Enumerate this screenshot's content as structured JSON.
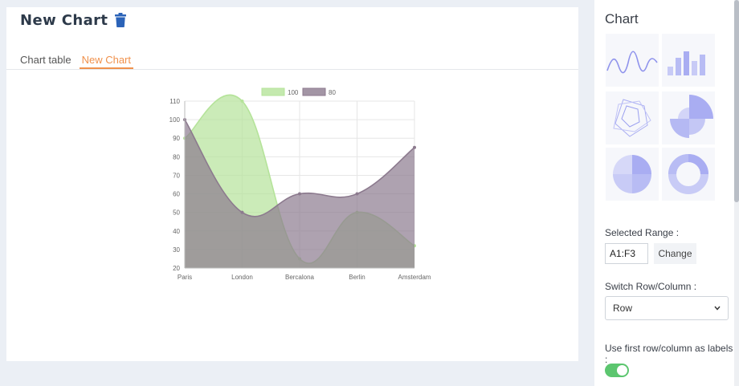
{
  "header": {
    "title": "New Chart"
  },
  "tabs": [
    {
      "label": "Chart table",
      "active": false
    },
    {
      "label": "New Chart",
      "active": true
    }
  ],
  "chart_data": {
    "type": "area",
    "categories": [
      "Paris",
      "London",
      "Bercalona",
      "Berlin",
      "Amsterdam"
    ],
    "series": [
      {
        "name": "100",
        "values": [
          90,
          110,
          25,
          50,
          32
        ],
        "color": "#b5e39a"
      },
      {
        "name": "80",
        "values": [
          100,
          50,
          60,
          60,
          85
        ],
        "color": "#8c7a8e"
      }
    ],
    "ylim": [
      20,
      110
    ],
    "yticks": [
      20,
      30,
      40,
      50,
      60,
      70,
      80,
      90,
      100,
      110
    ],
    "legend": "top",
    "grid": true,
    "title": "",
    "xlabel": "",
    "ylabel": ""
  },
  "sidebar": {
    "title": "Chart",
    "chart_types": [
      "line-chart-icon",
      "bar-chart-icon",
      "radar-chart-icon",
      "polar-area-chart-icon",
      "pie-chart-icon",
      "doughnut-chart-icon"
    ],
    "selected_range_label": "Selected Range :",
    "range_value": "A1:F3",
    "change_label": "Change",
    "switch_label": "Switch Row/Column :",
    "switch_value": "Row",
    "use_first_label": "Use first row/column as labels :",
    "use_first_on": true
  },
  "colors": {
    "accent": "#f0914c",
    "thumb": "#a9adf2",
    "toggle": "#5cc66f",
    "trash": "#2b63b8"
  }
}
